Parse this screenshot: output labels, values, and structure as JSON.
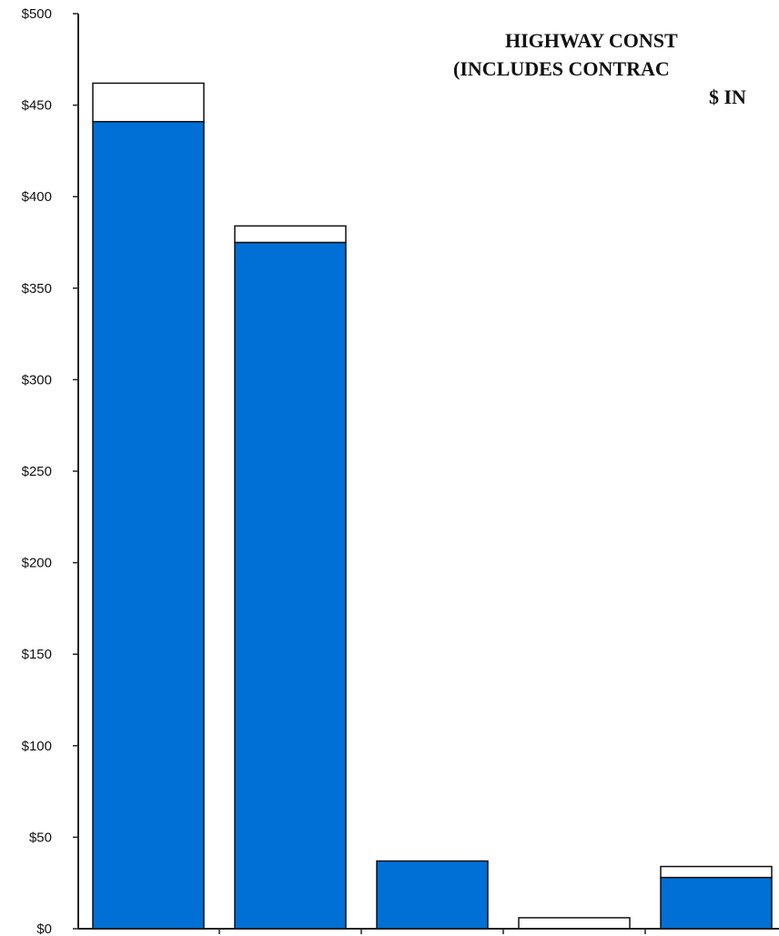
{
  "chart_data": {
    "type": "bar",
    "stacked": true,
    "title_lines": [
      "HIGHWAY CONST",
      "(INCLUDES CONTRAC",
      "$ IN"
    ],
    "xlabel": "",
    "ylabel": "",
    "ylim": [
      0,
      500
    ],
    "y_ticks": [
      "$0",
      "$50",
      "$100",
      "$150",
      "$200",
      "$250",
      "$300",
      "$350",
      "$400",
      "$450",
      "$500"
    ],
    "y_tick_values": [
      0,
      50,
      100,
      150,
      200,
      250,
      300,
      350,
      400,
      450,
      500
    ],
    "categories": [
      "",
      "",
      "",
      "",
      ""
    ],
    "series": [
      {
        "values": [
          441,
          375,
          37,
          0,
          28
        ]
      },
      {
        "values": [
          21,
          9,
          0,
          6,
          6
        ]
      }
    ],
    "colors": {
      "series_0": "#0070d6",
      "series_1": "#ffffff",
      "stroke": "#111111",
      "axis": "#222222"
    },
    "grid": false,
    "legend": "none"
  }
}
